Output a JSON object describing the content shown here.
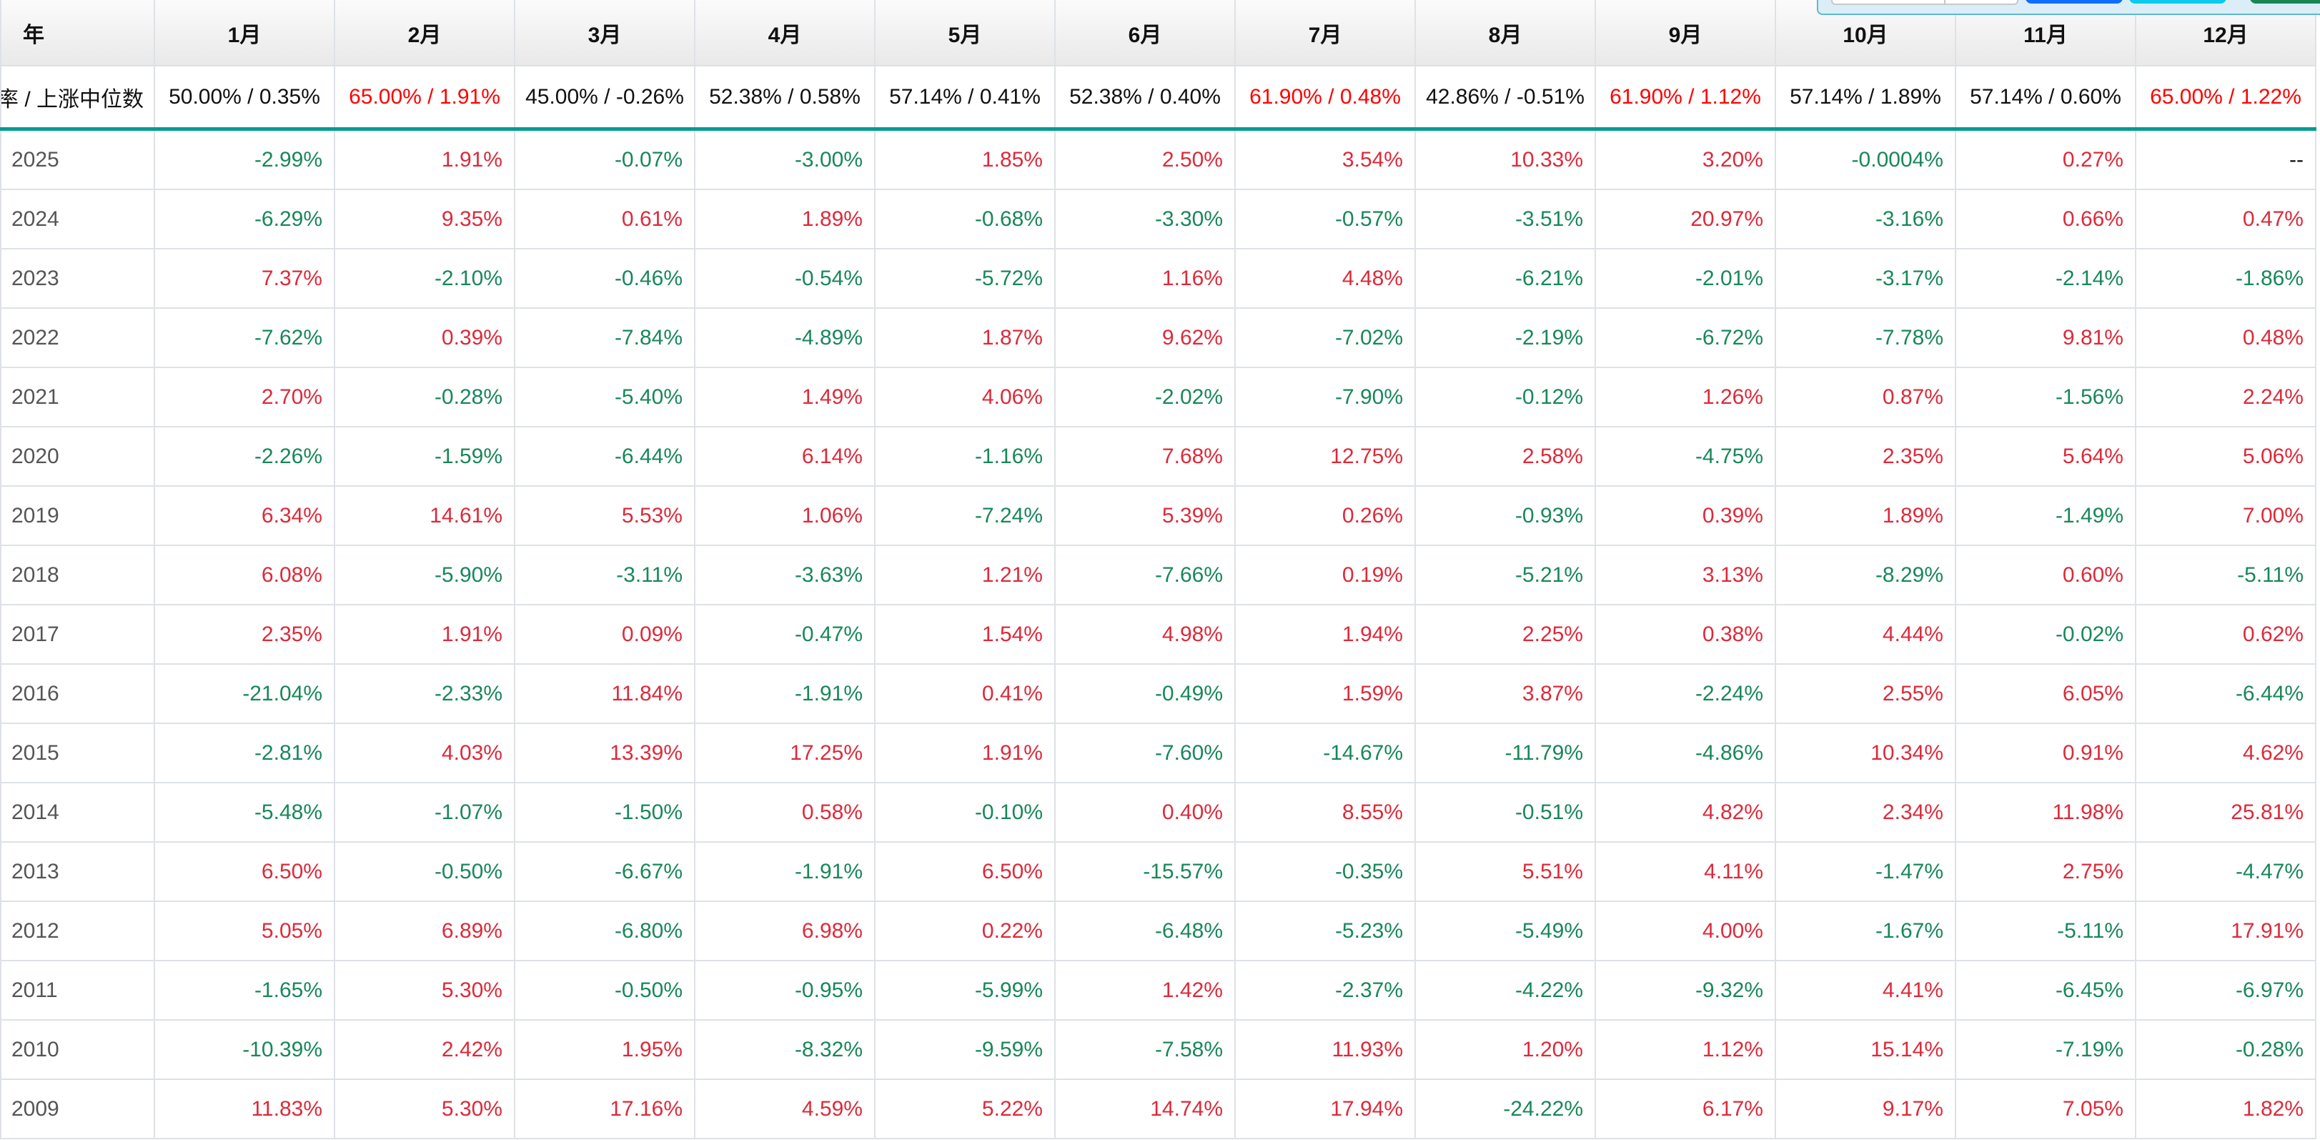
{
  "table": {
    "year_header": "年",
    "months": [
      "1月",
      "2月",
      "3月",
      "4月",
      "5月",
      "6月",
      "7月",
      "8月",
      "9月",
      "10月",
      "11月",
      "12月"
    ],
    "summary_label": "率 / 上涨中位数",
    "summary": [
      {
        "text": "50.00% / 0.35%",
        "highlight": false
      },
      {
        "text": "65.00% / 1.91%",
        "highlight": true
      },
      {
        "text": "45.00% / -0.26%",
        "highlight": false
      },
      {
        "text": "52.38% / 0.58%",
        "highlight": false
      },
      {
        "text": "57.14% / 0.41%",
        "highlight": false
      },
      {
        "text": "52.38% / 0.40%",
        "highlight": false
      },
      {
        "text": "61.90% / 0.48%",
        "highlight": true
      },
      {
        "text": "42.86% / -0.51%",
        "highlight": false
      },
      {
        "text": "61.90% / 1.12%",
        "highlight": true
      },
      {
        "text": "57.14% / 1.89%",
        "highlight": false
      },
      {
        "text": "57.14% / 0.60%",
        "highlight": false
      },
      {
        "text": "65.00% / 1.22%",
        "highlight": true
      }
    ],
    "rows": [
      {
        "year": "2025",
        "values": [
          "-2.99%",
          "1.91%",
          "-0.07%",
          "-3.00%",
          "1.85%",
          "2.50%",
          "3.54%",
          "10.33%",
          "3.20%",
          "-0.0004%",
          "0.27%",
          "--"
        ]
      },
      {
        "year": "2024",
        "values": [
          "-6.29%",
          "9.35%",
          "0.61%",
          "1.89%",
          "-0.68%",
          "-3.30%",
          "-0.57%",
          "-3.51%",
          "20.97%",
          "-3.16%",
          "0.66%",
          "0.47%"
        ]
      },
      {
        "year": "2023",
        "values": [
          "7.37%",
          "-2.10%",
          "-0.46%",
          "-0.54%",
          "-5.72%",
          "1.16%",
          "4.48%",
          "-6.21%",
          "-2.01%",
          "-3.17%",
          "-2.14%",
          "-1.86%"
        ]
      },
      {
        "year": "2022",
        "values": [
          "-7.62%",
          "0.39%",
          "-7.84%",
          "-4.89%",
          "1.87%",
          "9.62%",
          "-7.02%",
          "-2.19%",
          "-6.72%",
          "-7.78%",
          "9.81%",
          "0.48%"
        ]
      },
      {
        "year": "2021",
        "values": [
          "2.70%",
          "-0.28%",
          "-5.40%",
          "1.49%",
          "4.06%",
          "-2.02%",
          "-7.90%",
          "-0.12%",
          "1.26%",
          "0.87%",
          "-1.56%",
          "2.24%"
        ]
      },
      {
        "year": "2020",
        "values": [
          "-2.26%",
          "-1.59%",
          "-6.44%",
          "6.14%",
          "-1.16%",
          "7.68%",
          "12.75%",
          "2.58%",
          "-4.75%",
          "2.35%",
          "5.64%",
          "5.06%"
        ]
      },
      {
        "year": "2019",
        "values": [
          "6.34%",
          "14.61%",
          "5.53%",
          "1.06%",
          "-7.24%",
          "5.39%",
          "0.26%",
          "-0.93%",
          "0.39%",
          "1.89%",
          "-1.49%",
          "7.00%"
        ]
      },
      {
        "year": "2018",
        "values": [
          "6.08%",
          "-5.90%",
          "-3.11%",
          "-3.63%",
          "1.21%",
          "-7.66%",
          "0.19%",
          "-5.21%",
          "3.13%",
          "-8.29%",
          "0.60%",
          "-5.11%"
        ]
      },
      {
        "year": "2017",
        "values": [
          "2.35%",
          "1.91%",
          "0.09%",
          "-0.47%",
          "1.54%",
          "4.98%",
          "1.94%",
          "2.25%",
          "0.38%",
          "4.44%",
          "-0.02%",
          "0.62%"
        ]
      },
      {
        "year": "2016",
        "values": [
          "-21.04%",
          "-2.33%",
          "11.84%",
          "-1.91%",
          "0.41%",
          "-0.49%",
          "1.59%",
          "3.87%",
          "-2.24%",
          "2.55%",
          "6.05%",
          "-6.44%"
        ]
      },
      {
        "year": "2015",
        "values": [
          "-2.81%",
          "4.03%",
          "13.39%",
          "17.25%",
          "1.91%",
          "-7.60%",
          "-14.67%",
          "-11.79%",
          "-4.86%",
          "10.34%",
          "0.91%",
          "4.62%"
        ]
      },
      {
        "year": "2014",
        "values": [
          "-5.48%",
          "-1.07%",
          "-1.50%",
          "0.58%",
          "-0.10%",
          "0.40%",
          "8.55%",
          "-0.51%",
          "4.82%",
          "2.34%",
          "11.98%",
          "25.81%"
        ]
      },
      {
        "year": "2013",
        "values": [
          "6.50%",
          "-0.50%",
          "-6.67%",
          "-1.91%",
          "6.50%",
          "-15.57%",
          "-0.35%",
          "5.51%",
          "4.11%",
          "-1.47%",
          "2.75%",
          "-4.47%"
        ]
      },
      {
        "year": "2012",
        "values": [
          "5.05%",
          "6.89%",
          "-6.80%",
          "6.98%",
          "0.22%",
          "-6.48%",
          "-5.23%",
          "-5.49%",
          "4.00%",
          "-1.67%",
          "-5.11%",
          "17.91%"
        ]
      },
      {
        "year": "2011",
        "values": [
          "-1.65%",
          "5.30%",
          "-0.50%",
          "-0.95%",
          "-5.99%",
          "1.42%",
          "-2.37%",
          "-4.22%",
          "-9.32%",
          "4.41%",
          "-6.45%",
          "-6.97%"
        ]
      },
      {
        "year": "2010",
        "values": [
          "-10.39%",
          "2.42%",
          "1.95%",
          "-8.32%",
          "-9.59%",
          "-7.58%",
          "11.93%",
          "1.20%",
          "1.12%",
          "15.14%",
          "-7.19%",
          "-0.28%"
        ]
      },
      {
        "year": "2009",
        "values": [
          "11.83%",
          "5.30%",
          "17.16%",
          "4.59%",
          "5.22%",
          "14.74%",
          "17.94%",
          "-24.22%",
          "6.17%",
          "9.17%",
          "7.05%",
          "1.82%"
        ]
      }
    ]
  },
  "colors": {
    "up": "#dc2a3a",
    "down": "#19875a",
    "summary_highlight": "#ff0000",
    "accent_line": "#009a93"
  }
}
